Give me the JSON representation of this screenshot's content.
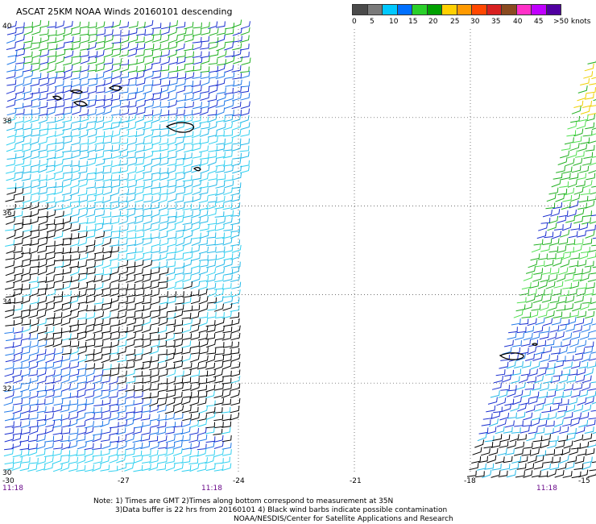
{
  "title": "ASCAT 25KM NOAA Winds 20160101 descending",
  "legend": {
    "colors": [
      "#4a4a4a",
      "#7a7a7a",
      "#00c8ff",
      "#0070ff",
      "#2ad02a",
      "#00a000",
      "#ffd000",
      "#ff9a00",
      "#ff4800",
      "#d82020",
      "#8a4a20",
      "#ff30c8",
      "#c000ff",
      "#5000a0"
    ],
    "labels": [
      "0",
      "5",
      "10",
      "15",
      "20",
      "25",
      "30",
      "35",
      "40",
      "45",
      ">50 knots"
    ]
  },
  "lat_labels": [
    "40",
    "38",
    "36",
    "34",
    "32",
    "30"
  ],
  "lon_labels": [
    "-30",
    "-27",
    "-24",
    "-21",
    "-18",
    "-15"
  ],
  "time_labels": [
    "11:18",
    "11:18",
    "11:18"
  ],
  "notes": [
    "Note: 1) Times are GMT 2)Times along bottom correspond to measurement at 35N",
    "3)Data buffer is 22 hrs from 20160101 4) Black wind barbs indicate possible contamination",
    "NOAA/NESDIS/Center for Satellite Applications and Research"
  ],
  "map": {
    "lon_range": [
      -30,
      -15
    ],
    "lat_range": [
      30,
      40
    ],
    "grid": true,
    "swaths": [
      {
        "name": "west-swath",
        "lon_range": [
          -30,
          -24.3
        ]
      },
      {
        "name": "east-swath",
        "lon_range": [
          -18,
          -15
        ]
      }
    ],
    "islands": [
      "azores-flores",
      "azores-graciosa",
      "azores-terceira",
      "azores-pico",
      "azores-sao-miguel",
      "azores-santa-maria",
      "madeira",
      "porto-santo"
    ]
  }
}
